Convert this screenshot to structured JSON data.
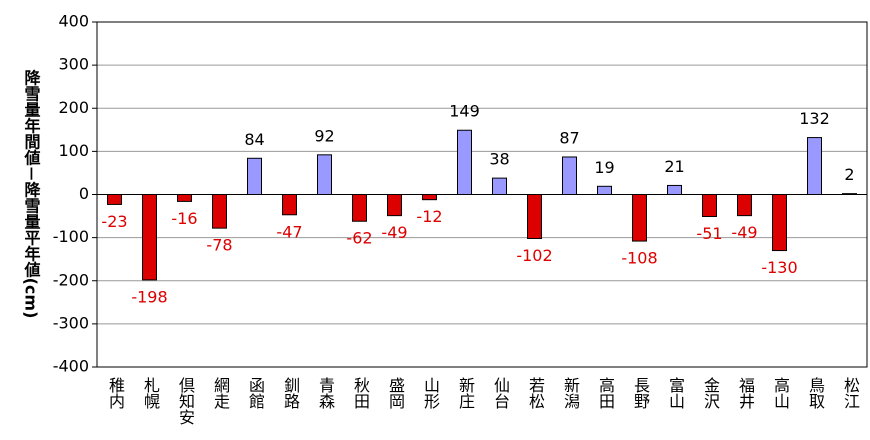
{
  "chart_data": {
    "type": "bar",
    "y_axis_label": "降雪量年間値－降雪量平年値(cm)",
    "categories": [
      "稚内",
      "札幌",
      "倶知安",
      "網走",
      "函館",
      "釧路",
      "青森",
      "秋田",
      "盛岡",
      "山形",
      "新庄",
      "仙台",
      "若松",
      "新潟",
      "高田",
      "長野",
      "富山",
      "金沢",
      "福井",
      "高山",
      "鳥取",
      "松江"
    ],
    "values": [
      -23,
      -198,
      -16,
      -78,
      84,
      -47,
      92,
      -62,
      -49,
      -12,
      149,
      38,
      -102,
      87,
      19,
      -108,
      21,
      -51,
      -49,
      -130,
      132,
      2
    ],
    "color": "#9999ff",
    "negative_color": "#dd0000",
    "ylim": [
      -400,
      400
    ],
    "yticks": [
      -400,
      -300,
      -200,
      -100,
      0,
      100,
      200,
      300,
      400
    ],
    "grid": true
  }
}
